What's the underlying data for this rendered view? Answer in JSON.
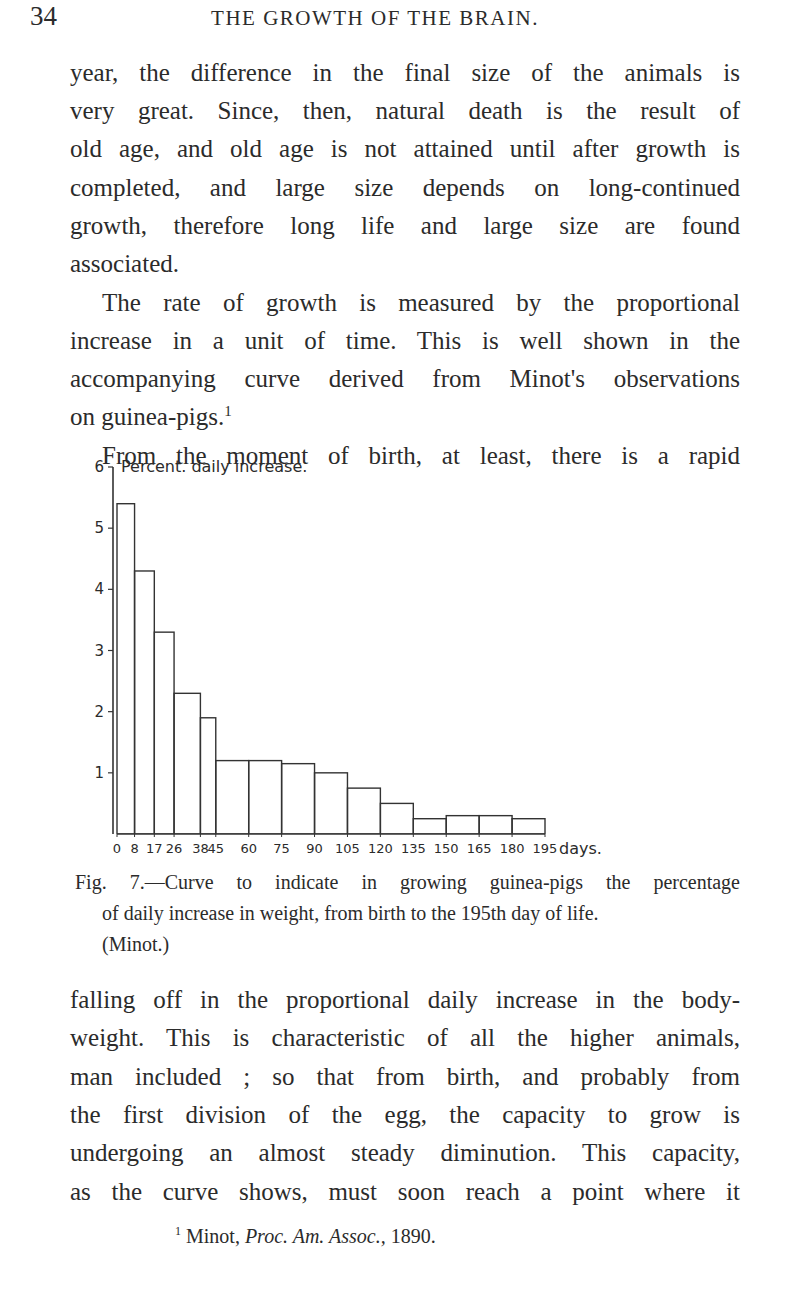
{
  "document": {
    "header": {
      "page_number": "34",
      "running_title": "THE GROWTH OF THE BRAIN."
    },
    "text_before": [
      {
        "indent": false,
        "lines": [
          "year, the difference in the final size of the animals is",
          "very great. Since, then, natural death is the result of",
          "old age, and old age is not attained until after growth is",
          "completed, and large size depends on long-continued",
          "growth, therefore long life and large size are found",
          "associated."
        ]
      },
      {
        "indent": true,
        "footnote_ref": "1",
        "lines": [
          "The rate of growth is measured by the proportional",
          "increase in a unit of time. This is well shown in the",
          "accompanying curve derived from Minot's observations",
          "on guinea-pigs."
        ]
      },
      {
        "indent": true,
        "lines": [
          "From the moment of birth, at least, there is a rapid"
        ]
      }
    ],
    "caption": {
      "lines": [
        "Fig. 7.—Curve to indicate in growing guinea-pigs the percentage",
        "of daily increase in weight, from birth to the 195th day of life.",
        "(Minot.)"
      ]
    },
    "text_after": [
      {
        "indent": false,
        "lines": [
          "falling off in the proportional daily increase in the body-",
          "weight. This is characteristic of all the higher animals,",
          "man included ; so that from birth, and probably from",
          "the first division of the egg, the capacity to grow is",
          "undergoing an almost steady diminution. This capacity,",
          "as the curve shows, must soon reach a point where it"
        ]
      }
    ],
    "footnote": {
      "marker": "1",
      "author": "Minot,",
      "source": "Proc. Am. Assoc.,",
      "year": "1890."
    }
  },
  "chart_data": {
    "type": "histogram",
    "y_label": "Percent. daily increase.",
    "x_label": "days.",
    "bins": [
      0,
      8,
      17,
      26,
      38,
      45,
      60,
      75,
      90,
      105,
      120,
      135,
      150,
      165,
      180,
      195
    ],
    "values": [
      5.4,
      4.3,
      3.3,
      2.3,
      1.9,
      1.2,
      1.2,
      1.15,
      1.0,
      0.75,
      0.5,
      0.25,
      0.3,
      0.3,
      0.25
    ],
    "color": "#333333",
    "xlim": [
      0,
      195
    ],
    "xticks": [
      0,
      8,
      17,
      26,
      38,
      45,
      60,
      75,
      90,
      105,
      120,
      135,
      150,
      165,
      180,
      195
    ],
    "ylim": [
      0,
      6
    ],
    "yticks": [
      1,
      2,
      3,
      4,
      5,
      6
    ],
    "grid": false
  }
}
